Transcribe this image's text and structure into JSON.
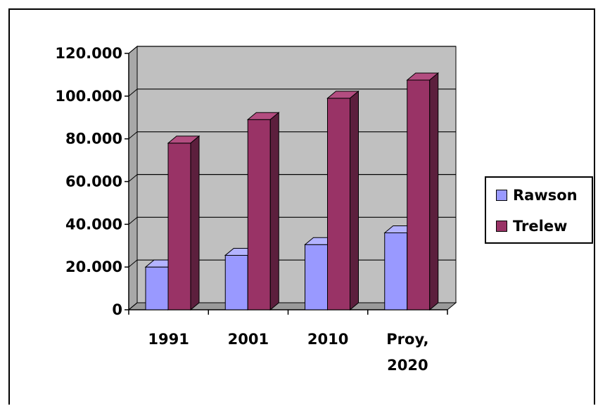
{
  "chart_data": {
    "type": "bar",
    "style": "3d-clustered-column",
    "categories": [
      [
        "1991"
      ],
      [
        "2001"
      ],
      [
        "2010"
      ],
      [
        "Proy,",
        "2020"
      ]
    ],
    "series": [
      {
        "name": "Rawson",
        "values": [
          20000,
          25500,
          30500,
          36000
        ]
      },
      {
        "name": "Trelew",
        "values": [
          78000,
          89000,
          99000,
          107500
        ]
      }
    ],
    "y_ticks": [
      "0",
      "20.000",
      "40.000",
      "60.000",
      "80.000",
      "100.000",
      "120.000"
    ],
    "ylim": [
      0,
      120000
    ],
    "grid": true,
    "legend_position": "right",
    "colors": {
      "Rawson_front": "#9999ff",
      "Rawson_top": "#b3b3ff",
      "Rawson_side": "#6b6bd6",
      "Trelew_front": "#993366",
      "Trelew_top": "#b34d80",
      "Trelew_side": "#5c1f3d",
      "plot_back": "#c0c0c0",
      "plot_floor": "#9a9a9a",
      "plot_wall": "#a8a8a8"
    }
  },
  "legend": {
    "items": [
      {
        "label": "Rawson",
        "color": "#9999ff"
      },
      {
        "label": "Trelew",
        "color": "#993366"
      }
    ]
  }
}
